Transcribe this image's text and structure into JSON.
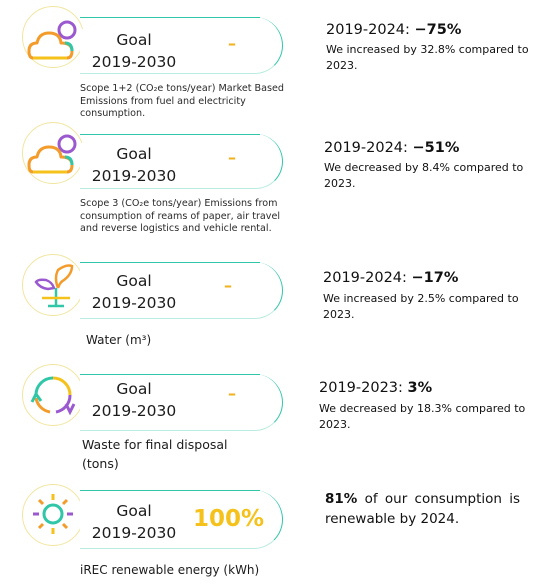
{
  "rows": [
    {
      "goal_label": "Goal",
      "goal_period": "2019-2030",
      "goal_value": "–",
      "metric_desc": "Scope 1+2 (CO₂e tons/year) Market Based Emissions from fuel and electricity consumption.",
      "stat_period": "2019-2024: ",
      "stat_value": "−75%",
      "stat_note": "We increased by 32.8% compared to 2023.",
      "icon": "cloud-icon"
    },
    {
      "goal_label": "Goal",
      "goal_period": "2019-2030",
      "goal_value": "–",
      "metric_desc": "Scope 3 (CO₂e tons/year) Emissions from consumption of reams of paper, air travel and reverse logistics and vehicle rental.",
      "stat_period": "2019-2024: ",
      "stat_value": "−51%",
      "stat_note": "We decreased by 8.4% compared to 2023.",
      "icon": "cloud-icon"
    },
    {
      "goal_label": "Goal",
      "goal_period": "2019-2030",
      "goal_value": "–",
      "metric_desc": "Water (m³)",
      "stat_period": "2019-2024: ",
      "stat_value": "−17%",
      "stat_note": "We increased by 2.5% compared to 2023.",
      "icon": "plant-icon"
    },
    {
      "goal_label": "Goal",
      "goal_period": "2019-2030",
      "goal_value": "–",
      "metric_desc": "Waste for final disposal (tons)",
      "stat_period": "2019-2023: ",
      "stat_value": "3%",
      "stat_note": "We decreased by 18.3% compared to 2023.",
      "icon": "recycle-icon"
    },
    {
      "goal_label": "Goal",
      "goal_period": "2019-2030",
      "goal_value": "100%",
      "metric_desc": "iREC renewable energy (kWh)",
      "stat_value": "81%",
      "stat_text": " of our consumption is renewable by 2024.",
      "icon": "sun-icon"
    }
  ],
  "colors": {
    "accent_teal": "#2fc7a7",
    "accent_yellow": "#f5c21b",
    "circle_border": "#f1e6a0",
    "icon_purple": "#9b59d0",
    "icon_orange": "#f39c2b"
  }
}
